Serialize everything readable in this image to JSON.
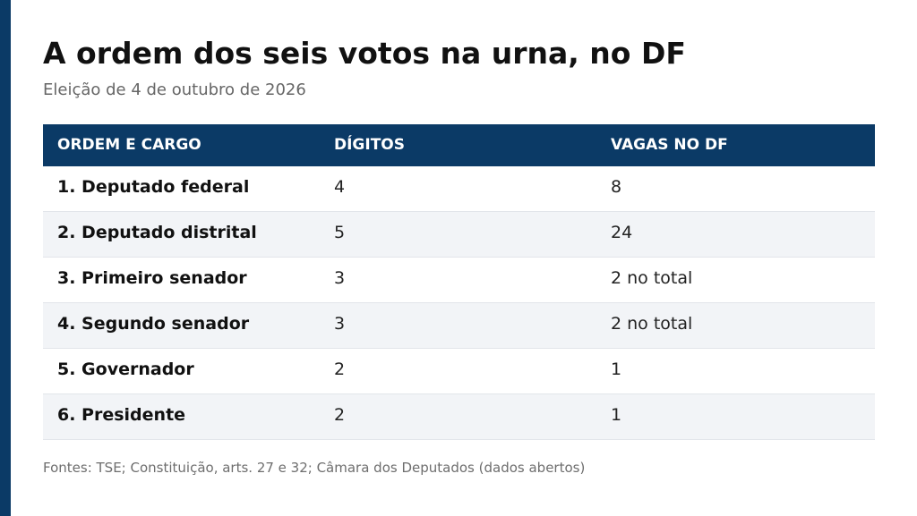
{
  "title": "A ordem dos seis votos na urna, no DF",
  "subtitle": "Eleição de 4 de outubro de 2026",
  "table": {
    "headers": [
      "ORDEM E CARGO",
      "DÍGITOS",
      "VAGAS NO DF"
    ],
    "rows": [
      {
        "cargo": "1. Deputado federal",
        "digitos": "4",
        "vagas": "8"
      },
      {
        "cargo": "2. Deputado distrital",
        "digitos": "5",
        "vagas": "24"
      },
      {
        "cargo": "3. Primeiro senador",
        "digitos": "3",
        "vagas": "2 no total"
      },
      {
        "cargo": "4. Segundo senador",
        "digitos": "3",
        "vagas": "2 no total"
      },
      {
        "cargo": "5. Governador",
        "digitos": "2",
        "vagas": "1"
      },
      {
        "cargo": "6. Presidente",
        "digitos": "2",
        "vagas": "1"
      }
    ]
  },
  "footer": "Fontes: TSE; Constituição, arts. 27 e 32; Câmara dos Deputados (dados abertos)",
  "colors": {
    "accent": "#0b3a66",
    "row_alt": "#f2f4f7",
    "muted_text": "#666666"
  }
}
